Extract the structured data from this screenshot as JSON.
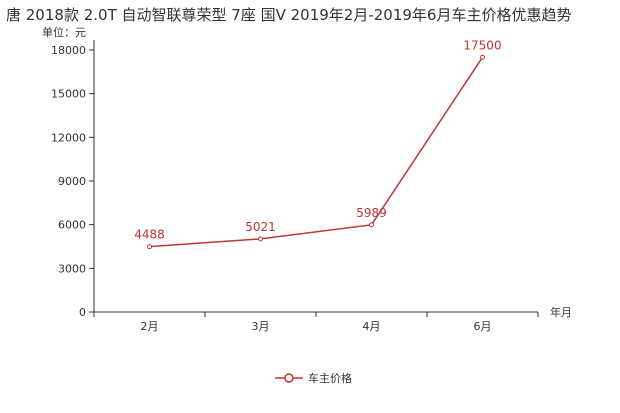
{
  "title": "唐 2018款 2.0T 自动智联尊荣型 7座 国V 2019年2月-2019年6月车主价格优惠趋势",
  "colors": {
    "series": "#c23531",
    "axis": "#333333",
    "grid": "#dddddd"
  },
  "chart_data": {
    "type": "line",
    "title": "唐 2018款 2.0T 自动智联尊荣型 7座 国V 2019年2月-2019年6月车主价格优惠趋势",
    "xlabel": "年月",
    "ylabel": "单位：元",
    "categories": [
      "2月",
      "3月",
      "4月",
      "6月"
    ],
    "ylim": [
      0,
      18000
    ],
    "yticks": [
      0,
      3000,
      6000,
      9000,
      12000,
      15000,
      18000
    ],
    "grid": false,
    "legend": "bottom-center",
    "series": [
      {
        "name": "车主价格",
        "values": [
          4488,
          5021,
          5989,
          17500
        ]
      }
    ]
  }
}
